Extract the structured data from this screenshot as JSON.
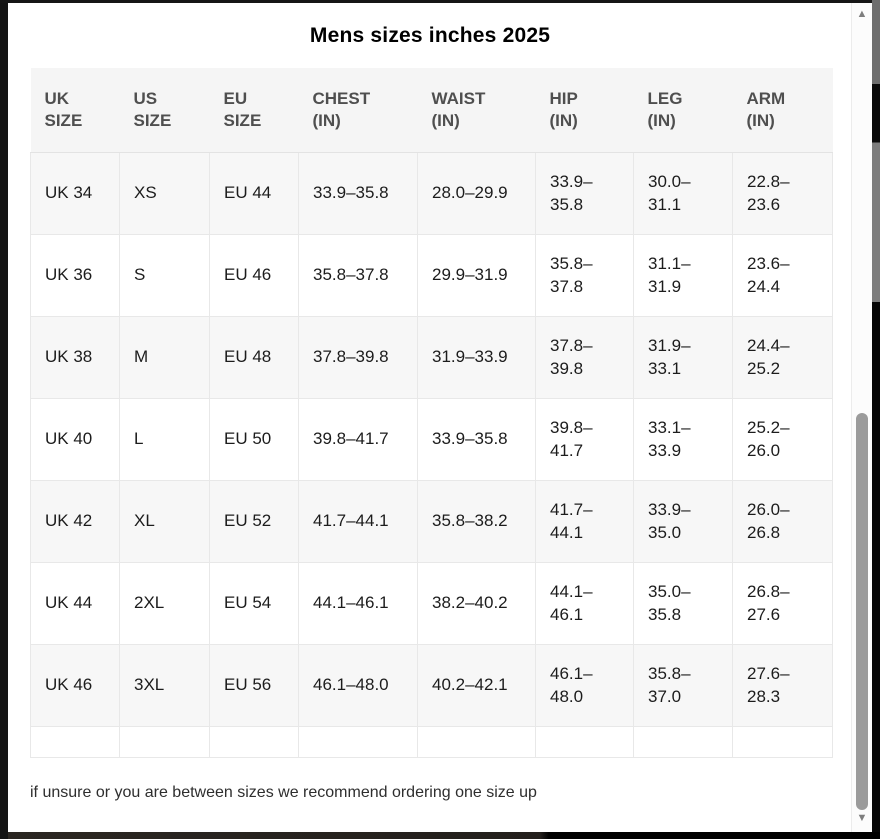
{
  "page": {
    "title": "Mens sizes inches 2025",
    "footnote": "if unsure or you are between sizes we recommend ordering one size up"
  },
  "colors": {
    "header_bg": "#f5f5f5",
    "alt_row_bg": "#f7f7f7",
    "row_bg": "#ffffff",
    "border": "#e8e8e8",
    "header_text": "#4f4f4f",
    "body_text": "#1c1c1c",
    "scrollbar_thumb": "#9b9b9b"
  },
  "scrollbar": {
    "up_icon": "▲",
    "down_icon": "▼"
  },
  "table": {
    "headers": {
      "uk": [
        "UK",
        "SIZE"
      ],
      "us": [
        "US",
        "SIZE"
      ],
      "eu": [
        "EU",
        "SIZE"
      ],
      "chest": [
        "CHEST",
        "(IN)"
      ],
      "waist": [
        "WAIST",
        "(IN)"
      ],
      "hip": [
        "HIP",
        "(IN)"
      ],
      "leg": [
        "LEG",
        "(IN)"
      ],
      "arm": [
        "ARM",
        "(IN)"
      ]
    },
    "rows": [
      {
        "uk": "UK 34",
        "us": "XS",
        "eu": "EU 44",
        "chest": "33.9–35.8",
        "waist": "28.0–29.9",
        "hip": [
          "33.9–",
          "35.8"
        ],
        "leg": [
          "30.0–",
          "31.1"
        ],
        "arm": [
          "22.8–",
          "23.6"
        ]
      },
      {
        "uk": "UK 36",
        "us": "S",
        "eu": "EU 46",
        "chest": "35.8–37.8",
        "waist": "29.9–31.9",
        "hip": [
          "35.8–",
          "37.8"
        ],
        "leg": [
          "31.1–",
          "31.9"
        ],
        "arm": [
          "23.6–",
          "24.4"
        ]
      },
      {
        "uk": "UK 38",
        "us": "M",
        "eu": "EU 48",
        "chest": "37.8–39.8",
        "waist": "31.9–33.9",
        "hip": [
          "37.8–",
          "39.8"
        ],
        "leg": [
          "31.9–",
          "33.1"
        ],
        "arm": [
          "24.4–",
          "25.2"
        ]
      },
      {
        "uk": "UK 40",
        "us": "L",
        "eu": "EU 50",
        "chest": "39.8–41.7",
        "waist": "33.9–35.8",
        "hip": [
          "39.8–",
          "41.7"
        ],
        "leg": [
          "33.1–",
          "33.9"
        ],
        "arm": [
          "25.2–",
          "26.0"
        ]
      },
      {
        "uk": "UK 42",
        "us": "XL",
        "eu": "EU 52",
        "chest": "41.7–44.1",
        "waist": "35.8–38.2",
        "hip": [
          "41.7–",
          "44.1"
        ],
        "leg": [
          "33.9–",
          "35.0"
        ],
        "arm": [
          "26.0–",
          "26.8"
        ]
      },
      {
        "uk": "UK 44",
        "us": "2XL",
        "eu": "EU 54",
        "chest": "44.1–46.1",
        "waist": "38.2–40.2",
        "hip": [
          "44.1–",
          "46.1"
        ],
        "leg": [
          "35.0–",
          "35.8"
        ],
        "arm": [
          "26.8–",
          "27.6"
        ]
      },
      {
        "uk": "UK 46",
        "us": "3XL",
        "eu": "EU 56",
        "chest": "46.1–48.0",
        "waist": "40.2–42.1",
        "hip": [
          "46.1–",
          "48.0"
        ],
        "leg": [
          "35.8–",
          "37.0"
        ],
        "arm": [
          "27.6–",
          "28.3"
        ]
      }
    ]
  }
}
